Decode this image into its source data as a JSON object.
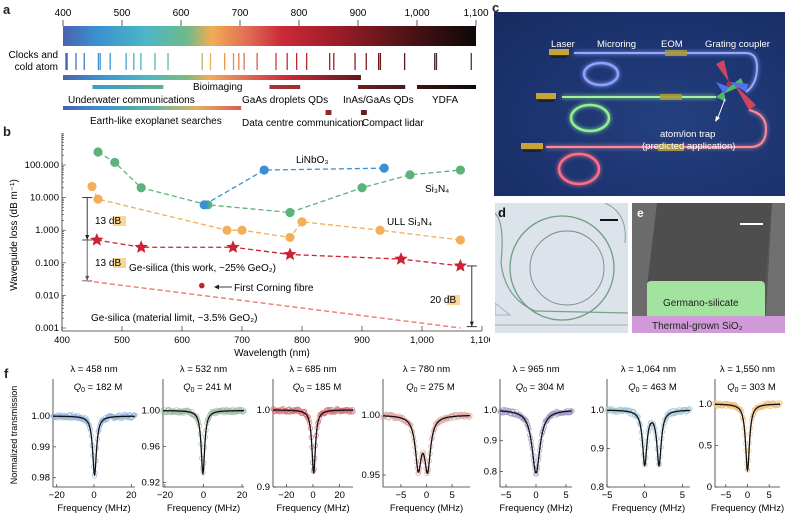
{
  "panels": {
    "a": {
      "letter": "a",
      "axis_ticks": [
        "400",
        "500",
        "600",
        "700",
        "800",
        "900",
        "1,000",
        "1,100"
      ],
      "axis_range_nm": [
        400,
        1100
      ],
      "row_label": [
        "Clocks and",
        "cold atom"
      ],
      "clock_lines_nm": [
        405,
        407,
        422,
        436,
        460,
        463,
        480,
        507,
        520,
        532,
        556,
        578,
        636,
        650,
        674,
        689,
        698,
        707,
        729,
        761,
        780,
        796,
        813,
        852,
        859,
        895,
        914,
        935,
        938,
        979,
        1030,
        1033,
        1092
      ],
      "bands": [
        {
          "name": "Bioimaging",
          "range_nm": [
            400,
            905
          ],
          "style": "gradient",
          "label": "Bioimaging"
        },
        {
          "name": "Underwater communications",
          "range_nm": [
            450,
            570
          ],
          "colors": [
            "#3a9ad0",
            "#5fb08a"
          ],
          "label": "Underwater communications"
        },
        {
          "name": "GaAs droplets QDs",
          "range_nm": [
            750,
            802
          ],
          "colors": [
            "#a7363a",
            "#9b2e33"
          ],
          "label": "GaAs droplets QDs"
        },
        {
          "name": "InAs/GaAs QDs",
          "range_nm": [
            900,
            980
          ],
          "colors": [
            "#6b1e22",
            "#4a1a1a"
          ],
          "label": "InAs/GaAs QDs"
        },
        {
          "name": "YDFA",
          "range_nm": [
            1000,
            1100
          ],
          "colors": [
            "#3a1414",
            "#0a0a0a"
          ],
          "label": "YDFA"
        },
        {
          "name": "Earth-like exoplanet searches",
          "range_nm": [
            400,
            702
          ],
          "style": "gradient-short",
          "label": "Earth-like exoplanet searches"
        },
        {
          "name": "Data centre communication",
          "range_nm": [
            845,
            855
          ],
          "colors": [
            "#8a2a2a",
            "#8a2a2a"
          ],
          "label": "Data centre communication"
        },
        {
          "name": "Compact lidar",
          "range_nm": [
            905,
            915
          ],
          "colors": [
            "#6a1e20",
            "#6a1e20"
          ],
          "label": "Compact lidar"
        }
      ]
    },
    "b": {
      "letter": "b",
      "ylabel": "Waveguide loss (dB m⁻¹)",
      "xlabel": "Wavelength (nm)",
      "annotations": {
        "db13_a": "13 dB",
        "db13_b": "13 dB",
        "db20": "20 dB",
        "lnbo": "LiNbO₃",
        "sin": "Si₃N₄",
        "ull": "ULL Si₃N₄",
        "gesil_work": "Ge-silica (this work, ~25% GeO₂)",
        "corning": "First Corning fibre",
        "gesil_limit": "Ge-silica (material limit, ~3.5% GeO₂)"
      }
    },
    "c": {
      "letter": "c",
      "labels": {
        "laser": "Laser",
        "microring": "Microring",
        "eom": "EOM",
        "grating": "Grating coupler",
        "trap1": "atom/ion trap",
        "trap2": "(predicted application)"
      }
    },
    "d": {
      "letter": "d"
    },
    "e": {
      "letter": "e",
      "core_label": "Germano-silicate",
      "substrate_label": "Thermal-grown SiO₂"
    },
    "f": {
      "letter": "f",
      "ylabel": "Normalized transmission",
      "xlabel": "Frequency (MHz)"
    }
  },
  "chart_data": [
    {
      "id": "b",
      "type": "scatter",
      "title": "",
      "xlabel": "Wavelength (nm)",
      "ylabel": "Waveguide loss (dB m⁻¹)",
      "xlim": [
        400,
        1100
      ],
      "ylim": [
        0.001,
        1000
      ],
      "yscale": "log",
      "xticks": [
        400,
        500,
        600,
        700,
        800,
        900,
        1000,
        1100
      ],
      "xtick_labels": [
        "400",
        "500",
        "600",
        "700",
        "800",
        "900",
        "1,000",
        "1,100"
      ],
      "yticks": [
        100,
        10,
        1,
        0.1,
        0.01,
        0.001
      ],
      "ytick_labels": [
        "100.000",
        "10.000",
        "1.000",
        "0.100",
        "0.010",
        "0.001"
      ],
      "series": [
        {
          "name": "Si₃N₄",
          "color": "#5bb37a",
          "marker": "circle",
          "line": "dashed",
          "x": [
            460,
            488,
            532,
            643,
            780,
            900,
            980,
            1064
          ],
          "y": [
            250,
            120,
            20,
            6,
            3.5,
            20,
            50,
            70
          ]
        },
        {
          "name": "LiNbO₃",
          "color": "#3b8fd4",
          "marker": "circle",
          "line": "dashed",
          "x": [
            637,
            737,
            937
          ],
          "y": [
            6,
            70,
            80
          ]
        },
        {
          "name": "ULL Si₃N₄",
          "color": "#f3ae5a",
          "marker": "circle",
          "line": "dashed",
          "x": [
            450,
            460,
            675,
            700,
            780,
            800,
            930,
            1064
          ],
          "y": [
            22,
            9,
            1.0,
            1.0,
            0.6,
            1.8,
            1.0,
            0.5
          ]
        },
        {
          "name": "Ge-silica (this work, ~25% GeO₂)",
          "color": "#cc2233",
          "marker": "star",
          "line": "dashed",
          "x": [
            458,
            532,
            685,
            780,
            965,
            1064
          ],
          "y": [
            0.5,
            0.3,
            0.3,
            0.18,
            0.13,
            0.08
          ]
        },
        {
          "name": "Ge-silica (material limit, ~3.5% GeO₂)",
          "color": "#ee7a70",
          "marker": "none",
          "line": "dashed",
          "x": [
            440,
            1064
          ],
          "y": [
            0.028,
            0.001
          ]
        },
        {
          "name": "First Corning fibre",
          "color": "#c0272d",
          "marker": "dot",
          "line": "none",
          "x": [
            633
          ],
          "y": [
            0.02
          ]
        }
      ],
      "annotations": [
        {
          "text": "13 dB",
          "from": 10,
          "to": 0.5,
          "at_nm": 442
        },
        {
          "text": "13 dB",
          "from": 0.5,
          "to": 0.028,
          "at_nm": 442
        },
        {
          "text": "20 dB",
          "from": 0.08,
          "to": 0.001,
          "at_nm": 1080
        }
      ]
    },
    {
      "id": "f1",
      "type": "line",
      "title_lambda": "λ = 458 nm",
      "title_q": "= 182 M",
      "xlabel": "Frequency (MHz)",
      "ylabel": "Normalized transmission",
      "xlim": [
        -22,
        22
      ],
      "ylim": [
        0.977,
        1.012
      ],
      "xticks": [
        -20,
        0,
        20
      ],
      "xtick_labels": [
        "−20",
        "0",
        "20"
      ],
      "yticks": [
        1.0,
        0.99,
        0.98
      ],
      "ytick_labels": [
        "1.00",
        "0.99",
        "0.98"
      ],
      "dips": [
        {
          "center": 0.3,
          "depth": 0.019,
          "width": 2.5
        }
      ],
      "baseline": 1.0,
      "color": "#8fb0d8"
    },
    {
      "id": "f2",
      "type": "line",
      "title_lambda": "λ = 532 nm",
      "title_q": "= 241 M",
      "xlabel": "Frequency (MHz)",
      "ylabel": "",
      "xlim": [
        -21,
        21
      ],
      "ylim": [
        0.915,
        1.035
      ],
      "xticks": [
        -20,
        0,
        20
      ],
      "xtick_labels": [
        "−20",
        "0",
        "20"
      ],
      "yticks": [
        1.0,
        0.96,
        0.92
      ],
      "ytick_labels": [
        "1.00",
        "0.96",
        "0.92"
      ],
      "dips": [
        {
          "center": -0.3,
          "depth": 0.07,
          "width": 2.2
        }
      ],
      "baseline": 1.0,
      "color": "#9bb8a0"
    },
    {
      "id": "f3",
      "type": "line",
      "title_lambda": "λ = 685 nm",
      "title_q": "= 185 M",
      "xlabel": "Frequency (MHz)",
      "ylabel": "",
      "xlim": [
        -30,
        30
      ],
      "ylim": [
        0.9,
        1.04
      ],
      "xticks": [
        -20,
        0,
        20
      ],
      "xtick_labels": [
        "−20",
        "0",
        "20"
      ],
      "yticks": [
        1.0,
        0.9
      ],
      "ytick_labels": [
        "1.0",
        "0.9"
      ],
      "dips": [
        {
          "center": 0.5,
          "depth": 0.082,
          "width": 3.2
        }
      ],
      "baseline": 1.0,
      "color": "#d46a72"
    },
    {
      "id": "f4",
      "type": "line",
      "title_lambda": "λ = 780 nm",
      "title_q": "= 275 M",
      "xlabel": "Frequency (MHz)",
      "ylabel": "",
      "xlim": [
        -8.5,
        8.5
      ],
      "ylim": [
        0.94,
        1.03
      ],
      "xticks": [
        -5,
        0,
        5
      ],
      "xtick_labels": [
        "−5",
        "0",
        "5"
      ],
      "yticks": [
        1.0,
        0.95
      ],
      "ytick_labels": [
        "1.00",
        "0.95"
      ],
      "dips": [
        {
          "center": -1.6,
          "depth": 0.042,
          "width": 1.4
        },
        {
          "center": 0.2,
          "depth": 0.043,
          "width": 1.4
        }
      ],
      "baseline": 1.0,
      "color": "#d9a39a"
    },
    {
      "id": "f5",
      "type": "line",
      "title_lambda": "λ = 965 nm",
      "title_q": "= 304 M",
      "xlabel": "Frequency (MHz)",
      "ylabel": "",
      "xlim": [
        -6,
        6
      ],
      "ylim": [
        0.75,
        1.1
      ],
      "xticks": [
        -5,
        0,
        5
      ],
      "xtick_labels": [
        "−5",
        "0",
        "5"
      ],
      "yticks": [
        1.0,
        0.9,
        0.8
      ],
      "ytick_labels": [
        "1.0",
        "0.9",
        "0.8"
      ],
      "dips": [
        {
          "center": 0,
          "depth": 0.205,
          "width": 1.6
        }
      ],
      "baseline": 1.0,
      "color": "#9a9ac4"
    },
    {
      "id": "f6",
      "type": "line",
      "title_lambda": "λ = 1,064 nm",
      "title_q": "= 463 M",
      "xlabel": "Frequency (MHz)",
      "ylabel": "",
      "xlim": [
        -5,
        6
      ],
      "ylim": [
        0.8,
        1.08
      ],
      "xticks": [
        -5,
        0,
        5
      ],
      "xtick_labels": [
        "−5",
        "0",
        "5"
      ],
      "yticks": [
        1.0,
        0.9,
        0.8
      ],
      "ytick_labels": [
        "1.0",
        "0.9",
        "0.8"
      ],
      "dips": [
        {
          "center": 0,
          "depth": 0.14,
          "width": 0.7
        },
        {
          "center": 1.9,
          "depth": 0.14,
          "width": 0.7
        }
      ],
      "baseline": 1.0,
      "color": "#9cc3d4"
    },
    {
      "id": "f7",
      "type": "line",
      "title_lambda": "λ = 1,550 nm",
      "title_q": "= 303 M",
      "xlabel": "Frequency (MHz)",
      "ylabel": "",
      "xlim": [
        -7.5,
        7.5
      ],
      "ylim": [
        0,
        1.3
      ],
      "xticks": [
        -5,
        0,
        5
      ],
      "xtick_labels": [
        "−5",
        "0",
        "5"
      ],
      "yticks": [
        1.0,
        0.5,
        0
      ],
      "ytick_labels": [
        "1.0",
        "0.5",
        "0"
      ],
      "dips": [
        {
          "center": 0,
          "depth": 0.8,
          "width": 1.1
        }
      ],
      "baseline": 1.0,
      "color": "#f0c080"
    }
  ]
}
